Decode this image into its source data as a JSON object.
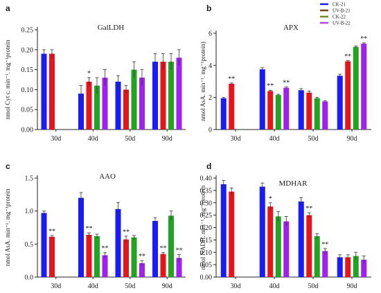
{
  "legend": {
    "entries": [
      {
        "label": "CK-21",
        "color": "#1a1aff"
      },
      {
        "label": "UV-B-21",
        "color": "#6b4a18"
      },
      {
        "label": "CK-22",
        "color": "#6b8e23"
      },
      {
        "label": "UV-B-22",
        "color": "#c040ff"
      }
    ]
  },
  "chart_data": [
    {
      "type": "bar",
      "panel_label": "a",
      "title": "GalLDH",
      "ylabel": "nmol Cyt c. min⁻¹. mg⁻¹protein",
      "ylim": [
        0,
        0.25
      ],
      "yticks": [
        0.0,
        0.05,
        0.1,
        0.15,
        0.2,
        0.25
      ],
      "tick_decimals": 2,
      "categories": [
        "30d",
        "40d",
        "50d",
        "90d"
      ],
      "series": [
        {
          "name": "CK-21",
          "color": "#1a1aff",
          "values": [
            0.19,
            0.09,
            0.12,
            0.17
          ],
          "errors": [
            0.01,
            0.02,
            0.015,
            0.02
          ]
        },
        {
          "name": "UV-B-21",
          "color": "#e8141c",
          "values": [
            0.19,
            0.12,
            0.1,
            0.17
          ],
          "errors": [
            0.01,
            0.01,
            0.01,
            0.02
          ]
        },
        {
          "name": "CK-22",
          "color": "#22a322",
          "values": [
            null,
            0.11,
            0.15,
            0.17
          ],
          "errors": [
            0,
            0.02,
            0.02,
            0.02
          ]
        },
        {
          "name": "UV-B-22",
          "color": "#a020f0",
          "values": [
            null,
            0.13,
            0.13,
            0.18
          ],
          "errors": [
            0,
            0.02,
            0.02,
            0.02
          ]
        }
      ],
      "annotations": [
        {
          "group": 1,
          "series": 1,
          "text": "*"
        }
      ]
    },
    {
      "type": "bar",
      "panel_label": "b",
      "title": "APX",
      "ylabel": "nmol AsA. min⁻¹. mg⁻¹protein)",
      "ylim": [
        0,
        6
      ],
      "yticks": [
        0,
        2,
        4,
        6
      ],
      "tick_decimals": 0,
      "categories": [
        "30d",
        "40d",
        "50d",
        "90d"
      ],
      "series": [
        {
          "name": "CK-21",
          "color": "#1a1aff",
          "values": [
            1.95,
            3.75,
            2.45,
            3.35
          ],
          "errors": [
            0.05,
            0.1,
            0.1,
            0.1
          ]
        },
        {
          "name": "UV-B-21",
          "color": "#e8141c",
          "values": [
            2.85,
            2.4,
            2.3,
            4.25
          ],
          "errors": [
            0.05,
            0.05,
            0.1,
            0.05
          ]
        },
        {
          "name": "CK-22",
          "color": "#22a322",
          "values": [
            null,
            2.15,
            1.95,
            5.15
          ],
          "errors": [
            0,
            0.05,
            0.05,
            0.05
          ]
        },
        {
          "name": "UV-B-22",
          "color": "#a020f0",
          "values": [
            null,
            2.6,
            1.75,
            5.35
          ],
          "errors": [
            0,
            0.05,
            0.05,
            0.05
          ]
        }
      ],
      "annotations": [
        {
          "group": 0,
          "series": 1,
          "text": "**"
        },
        {
          "group": 1,
          "series": 1,
          "text": "**"
        },
        {
          "group": 1,
          "series": 3,
          "text": "**"
        },
        {
          "group": 3,
          "series": 1,
          "text": "**"
        },
        {
          "group": 3,
          "series": 3,
          "text": "**"
        }
      ]
    },
    {
      "type": "bar",
      "panel_label": "c",
      "title": "AAO",
      "ylabel": "nmol AsA. min⁻¹. mg⁻¹protein",
      "ylim": [
        0,
        1.5
      ],
      "yticks": [
        0.0,
        0.5,
        1.0,
        1.5
      ],
      "tick_decimals": 1,
      "categories": [
        "30d",
        "40d",
        "50d",
        "90d"
      ],
      "series": [
        {
          "name": "CK-21",
          "color": "#1a1aff",
          "values": [
            0.97,
            1.2,
            1.03,
            0.85
          ],
          "errors": [
            0.03,
            0.08,
            0.1,
            0.05
          ]
        },
        {
          "name": "UV-B-21",
          "color": "#e8141c",
          "values": [
            0.61,
            0.64,
            0.57,
            0.35
          ],
          "errors": [
            0.02,
            0.03,
            0.05,
            0.02
          ]
        },
        {
          "name": "CK-22",
          "color": "#22a322",
          "values": [
            null,
            0.62,
            0.6,
            0.93
          ],
          "errors": [
            0,
            0.03,
            0.03,
            0.07
          ]
        },
        {
          "name": "UV-B-22",
          "color": "#a020f0",
          "values": [
            null,
            0.33,
            0.21,
            0.29
          ],
          "errors": [
            0,
            0.04,
            0.04,
            0.05
          ]
        }
      ],
      "annotations": [
        {
          "group": 0,
          "series": 1,
          "text": "**"
        },
        {
          "group": 1,
          "series": 1,
          "text": "**"
        },
        {
          "group": 1,
          "series": 3,
          "text": "**"
        },
        {
          "group": 2,
          "series": 1,
          "text": "**"
        },
        {
          "group": 2,
          "series": 3,
          "text": "**"
        },
        {
          "group": 3,
          "series": 1,
          "text": "**"
        },
        {
          "group": 3,
          "series": 3,
          "text": "**"
        }
      ]
    },
    {
      "type": "bar",
      "panel_label": "d",
      "title": "MDHAR",
      "ylabel": "nmol NADH. min⁻¹. mg⁻¹protein",
      "ylim": [
        0,
        0.4
      ],
      "yticks": [
        0.0,
        0.05,
        0.1,
        0.15,
        0.2,
        0.25,
        0.3,
        0.35,
        0.4
      ],
      "tick_decimals": 2,
      "categories": [
        "30d",
        "40d",
        "50d",
        "90d"
      ],
      "series": [
        {
          "name": "CK-21",
          "color": "#1a1aff",
          "values": [
            0.375,
            0.365,
            0.305,
            0.08
          ],
          "errors": [
            0.015,
            0.015,
            0.015,
            0.01
          ]
        },
        {
          "name": "UV-B-21",
          "color": "#e8141c",
          "values": [
            0.345,
            0.285,
            0.25,
            0.08
          ],
          "errors": [
            0.015,
            0.015,
            0.01,
            0.01
          ]
        },
        {
          "name": "CK-22",
          "color": "#22a322",
          "values": [
            null,
            0.245,
            0.165,
            0.085
          ],
          "errors": [
            0,
            0.02,
            0.01,
            0.015
          ]
        },
        {
          "name": "UV-B-22",
          "color": "#a020f0",
          "values": [
            null,
            0.225,
            0.105,
            0.07
          ],
          "errors": [
            0,
            0.02,
            0.01,
            0.015
          ]
        }
      ],
      "annotations": [
        {
          "group": 1,
          "series": 1,
          "text": "*"
        },
        {
          "group": 2,
          "series": 1,
          "text": "**"
        },
        {
          "group": 2,
          "series": 3,
          "text": "**"
        }
      ]
    }
  ]
}
